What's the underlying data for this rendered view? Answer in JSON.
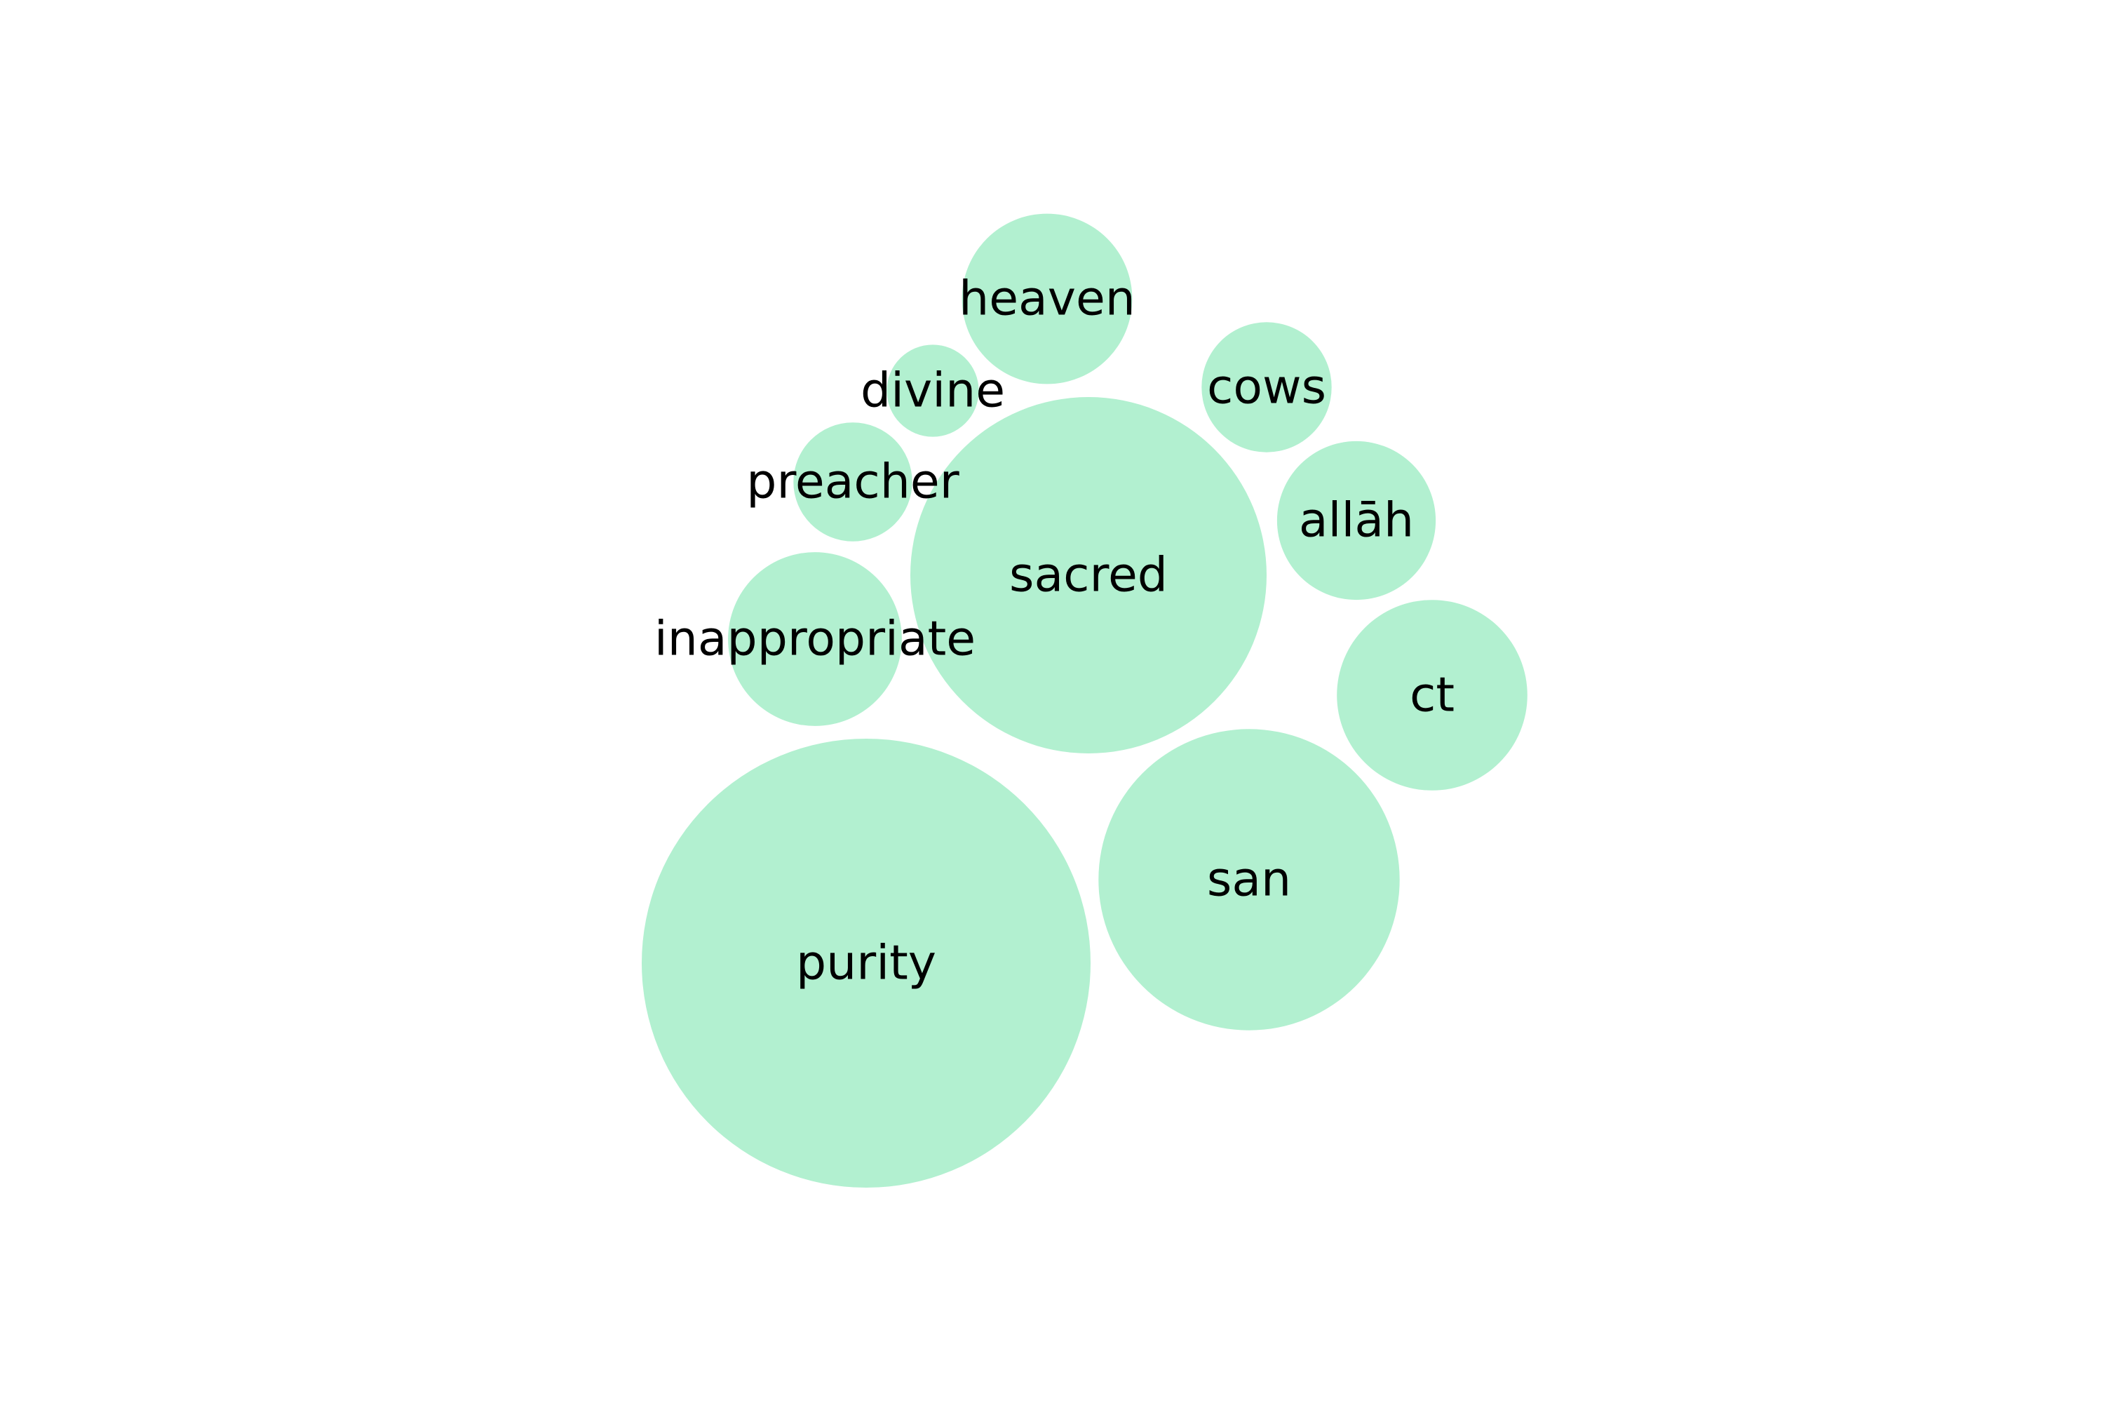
{
  "chart_data": {
    "type": "bubble",
    "title": "",
    "bubble_color": "#b2f0d0",
    "label_color": "#000000",
    "background": "#ffffff",
    "bubbles": [
      {
        "label": "purity",
        "value": 100
      },
      {
        "label": "sacred",
        "value": 63
      },
      {
        "label": "san",
        "value": 45
      },
      {
        "label": "ct",
        "value": 18
      },
      {
        "label": "inappropriate",
        "value": 15
      },
      {
        "label": "heaven",
        "value": 14.4
      },
      {
        "label": "allāh",
        "value": 12.5
      },
      {
        "label": "cows",
        "value": 8.4
      },
      {
        "label": "preacher",
        "value": 7
      },
      {
        "label": "divine",
        "value": 4.2
      }
    ]
  }
}
